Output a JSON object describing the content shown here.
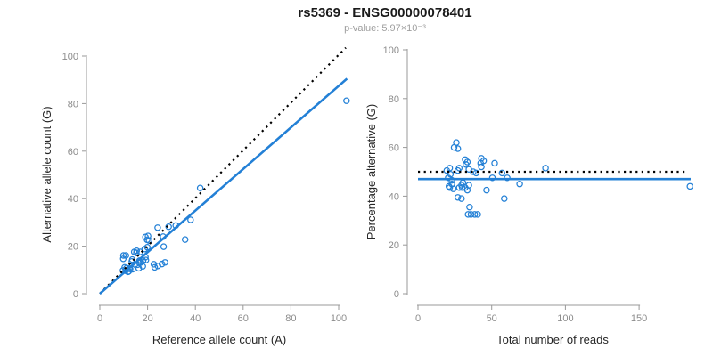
{
  "header": {
    "title": "rs5369 - ENSG00000078401",
    "subtitle": "p-value: 5.97×10⁻³"
  },
  "colors": {
    "point_blue": "#2380D6",
    "fit_line_blue": "#2380D6",
    "dotted_black": "#000000",
    "axis_gray": "#999999",
    "tick_label_gray": "#8c8c8c",
    "label_dark": "#262626"
  },
  "chart_data": [
    {
      "type": "scatter",
      "panel": "left",
      "xlabel": "Reference allele count (A)",
      "ylabel": "Alternative allele count (G)",
      "xlim": [
        0,
        105
      ],
      "ylim": [
        0,
        105
      ],
      "xticks": [
        0,
        20,
        40,
        60,
        80,
        100
      ],
      "yticks": [
        0,
        20,
        40,
        60,
        80,
        100
      ],
      "grid": "off",
      "legend": "none",
      "points": [
        [
          9.9,
          16.1
        ],
        [
          9.8,
          14.7
        ],
        [
          10.9,
          16.1
        ],
        [
          14.4,
          17.6
        ],
        [
          15.4,
          18.1
        ],
        [
          15.3,
          17.2
        ],
        [
          19.1,
          23.9
        ],
        [
          20.2,
          24.3
        ],
        [
          19.8,
          22.7
        ],
        [
          20.6,
          22.4
        ],
        [
          10.4,
          11.1
        ],
        [
          9.7,
          9.8
        ],
        [
          13.6,
          14.4
        ],
        [
          13.4,
          13.6
        ],
        [
          16.9,
          17.6
        ],
        [
          18.8,
          18.8
        ],
        [
          19.9,
          19.6
        ],
        [
          11.2,
          10.8
        ],
        [
          10.8,
          9.7
        ],
        [
          12.3,
          10.7
        ],
        [
          12.7,
          10.4
        ],
        [
          11.8,
          9.2
        ],
        [
          16.6,
          13.9
        ],
        [
          16.4,
          13.1
        ],
        [
          18.1,
          13.9
        ],
        [
          19.1,
          15.4
        ],
        [
          13.7,
          10.3
        ],
        [
          12.1,
          9.4
        ],
        [
          15.8,
          12.2
        ],
        [
          17.0,
          13.1
        ],
        [
          19.3,
          14.2
        ],
        [
          26.7,
          19.8
        ],
        [
          16.3,
          10.7
        ],
        [
          18.0,
          11.5
        ],
        [
          22.6,
          12.4
        ],
        [
          23.0,
          11.1
        ],
        [
          24.3,
          11.7
        ],
        [
          26.0,
          12.5
        ],
        [
          27.3,
          13.2
        ],
        [
          24.2,
          27.8
        ],
        [
          26.5,
          24.0
        ],
        [
          28.8,
          28.2
        ],
        [
          31.8,
          28.7
        ],
        [
          38.0,
          31.1
        ],
        [
          35.7,
          22.8
        ],
        [
          42.0,
          44.5
        ],
        [
          103.3,
          81.2
        ]
      ],
      "lines": [
        {
          "id": "identity-line",
          "style": "dotted",
          "color": "#000000",
          "from": [
            0,
            0
          ],
          "to": [
            103,
            103.5
          ]
        },
        {
          "id": "fit-line",
          "style": "solid",
          "color": "#2380D6",
          "from": [
            0,
            0
          ],
          "to": [
            103.5,
            90.5
          ]
        }
      ]
    },
    {
      "type": "scatter",
      "panel": "right",
      "xlabel": "Total number of reads",
      "ylabel": "Percentage alternative (G)",
      "xlim": [
        0,
        187
      ],
      "ylim": [
        0,
        105
      ],
      "xticks": [
        0,
        50,
        100,
        150
      ],
      "yticks": [
        0,
        20,
        40,
        60,
        80,
        100
      ],
      "grid": "off",
      "legend": "none",
      "points": [
        [
          26,
          62
        ],
        [
          24.5,
          60
        ],
        [
          27,
          59.5
        ],
        [
          32,
          55
        ],
        [
          33.5,
          54
        ],
        [
          32.5,
          53
        ],
        [
          43,
          55.5
        ],
        [
          44.5,
          54.5
        ],
        [
          42.5,
          53.5
        ],
        [
          43,
          52
        ],
        [
          21.5,
          51.5
        ],
        [
          19.5,
          50.5
        ],
        [
          28,
          51.5
        ],
        [
          27,
          50.5
        ],
        [
          34.5,
          51
        ],
        [
          37.5,
          50
        ],
        [
          39.5,
          49.5
        ],
        [
          22,
          49
        ],
        [
          20.5,
          47.5
        ],
        [
          23,
          46.5
        ],
        [
          23,
          45
        ],
        [
          21,
          44
        ],
        [
          30.5,
          45.5
        ],
        [
          29.5,
          44.5
        ],
        [
          32,
          43.5
        ],
        [
          34.5,
          44.5
        ],
        [
          24,
          43
        ],
        [
          21.5,
          43.5
        ],
        [
          28,
          43.5
        ],
        [
          30,
          43.5
        ],
        [
          33.5,
          42.5
        ],
        [
          46.5,
          42.5
        ],
        [
          27,
          39.5
        ],
        [
          29.5,
          39
        ],
        [
          35,
          35.5
        ],
        [
          34,
          32.5
        ],
        [
          36,
          32.5
        ],
        [
          38.5,
          32.5
        ],
        [
          40.5,
          32.5
        ],
        [
          52,
          53.5
        ],
        [
          50.5,
          47.5
        ],
        [
          57,
          49.5
        ],
        [
          60.5,
          47.5
        ],
        [
          69,
          45
        ],
        [
          58.5,
          39
        ],
        [
          86.5,
          51.5
        ],
        [
          184.5,
          44
        ]
      ],
      "lines": [
        {
          "id": "expected-50pct-line",
          "style": "dotted",
          "color": "#000000",
          "from": [
            0,
            50
          ],
          "to": [
            181,
            50
          ]
        },
        {
          "id": "fit-line",
          "style": "solid",
          "color": "#2380D6",
          "from": [
            0,
            47
          ],
          "to": [
            185,
            47
          ]
        }
      ]
    }
  ]
}
